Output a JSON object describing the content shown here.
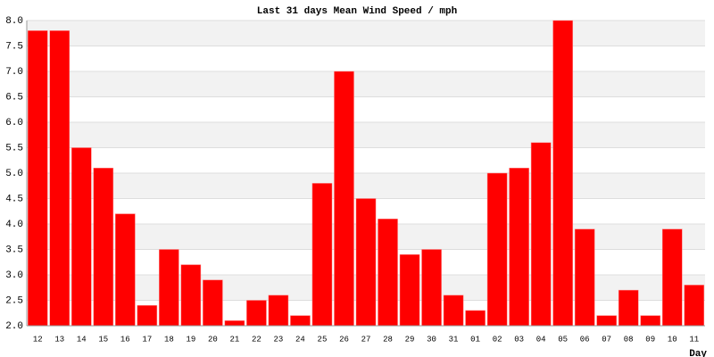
{
  "chart_data": {
    "type": "bar",
    "title": "Last 31 days Mean Wind Speed / mph",
    "x_label": "Day",
    "categories": [
      "12",
      "13",
      "14",
      "15",
      "16",
      "17",
      "18",
      "19",
      "20",
      "21",
      "22",
      "23",
      "24",
      "25",
      "26",
      "27",
      "28",
      "29",
      "30",
      "31",
      "01",
      "02",
      "03",
      "04",
      "05",
      "06",
      "07",
      "08",
      "09",
      "10",
      "11"
    ],
    "values": [
      7.8,
      7.8,
      5.5,
      5.1,
      4.2,
      2.4,
      3.5,
      3.2,
      2.9,
      2.1,
      2.5,
      2.6,
      2.2,
      4.8,
      7.0,
      4.5,
      4.1,
      3.4,
      3.5,
      2.6,
      2.3,
      5.0,
      5.1,
      5.6,
      8.0,
      3.9,
      2.2,
      2.7,
      2.2,
      3.9,
      2.8
    ],
    "color": "#ff0000",
    "ylim": [
      2,
      8
    ],
    "yticks": [
      {
        "value": 2,
        "label": "2.0"
      },
      {
        "value": 2.5,
        "label": "2.5"
      },
      {
        "value": 3,
        "label": "3.0"
      },
      {
        "value": 3.5,
        "label": "3.5"
      },
      {
        "value": 4,
        "label": "4.0"
      },
      {
        "value": 4.5,
        "label": "4.5"
      },
      {
        "value": 5,
        "label": "5.0"
      },
      {
        "value": 5.5,
        "label": "5.5"
      },
      {
        "value": 6,
        "label": "6.0"
      },
      {
        "value": 6.5,
        "label": "6.5"
      },
      {
        "value": 7,
        "label": "7.0"
      },
      {
        "value": 7.5,
        "label": "7.5"
      },
      {
        "value": 8,
        "label": "8.0"
      }
    ],
    "grid": true
  }
}
